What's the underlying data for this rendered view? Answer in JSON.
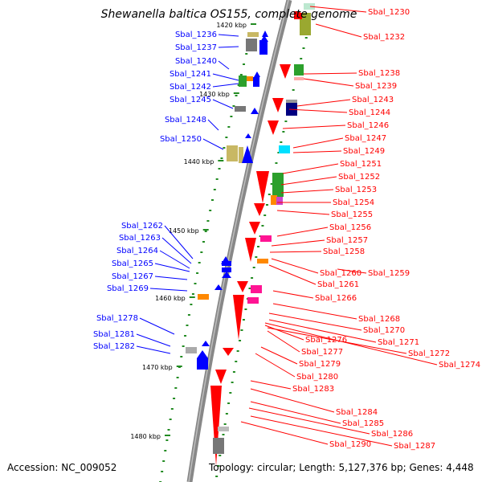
{
  "title": "Shewanella baltica OS155, complete genome",
  "accession": "Accession: NC_009052",
  "topology": "Topology: circular; Length: 5,127,376 bp; Genes: 4,448",
  "colors": {
    "forward": "#0000ff",
    "reverse": "#ff0000",
    "backbone": "#888888",
    "tick": "#228b22"
  },
  "kbp_ticks": [
    "1420 kbp",
    "1430 kbp",
    "1440 kbp",
    "1450 kbp",
    "1460 kbp",
    "1470 kbp",
    "1480 kbp"
  ],
  "left_labels": [
    "Sbal_1236",
    "Sbal_1237",
    "Sbal_1240",
    "Sbal_1241",
    "Sbal_1242",
    "Sbal_1245",
    "Sbal_1248",
    "Sbal_1250",
    "Sbal_1262",
    "Sbal_1263",
    "Sbal_1264",
    "Sbal_1265",
    "Sbal_1267",
    "Sbal_1269",
    "Sbal_1278",
    "Sbal_1281",
    "Sbal_1282"
  ],
  "right_labels": [
    "Sbal_1230",
    "Sbal_1232",
    "Sbal_1238",
    "Sbal_1239",
    "Sbal_1243",
    "Sbal_1244",
    "Sbal_1246",
    "Sbal_1247",
    "Sbal_1249",
    "Sbal_1251",
    "Sbal_1252",
    "Sbal_1253",
    "Sbal_1254",
    "Sbal_1255",
    "Sbal_1256",
    "Sbal_1257",
    "Sbal_1258",
    "Sbal_1260",
    "Sbal_1259",
    "Sbal_1261",
    "Sbal_1266",
    "Sbal_1268",
    "Sbal_1270",
    "Sbal_1271",
    "Sbal_1276",
    "Sbal_1272",
    "Sbal_1277",
    "Sbal_1274",
    "Sbal_1279",
    "Sbal_1280",
    "Sbal_1283",
    "Sbal_1284",
    "Sbal_1285",
    "Sbal_1286",
    "Sbal_1287",
    "Sbal_1290"
  ]
}
